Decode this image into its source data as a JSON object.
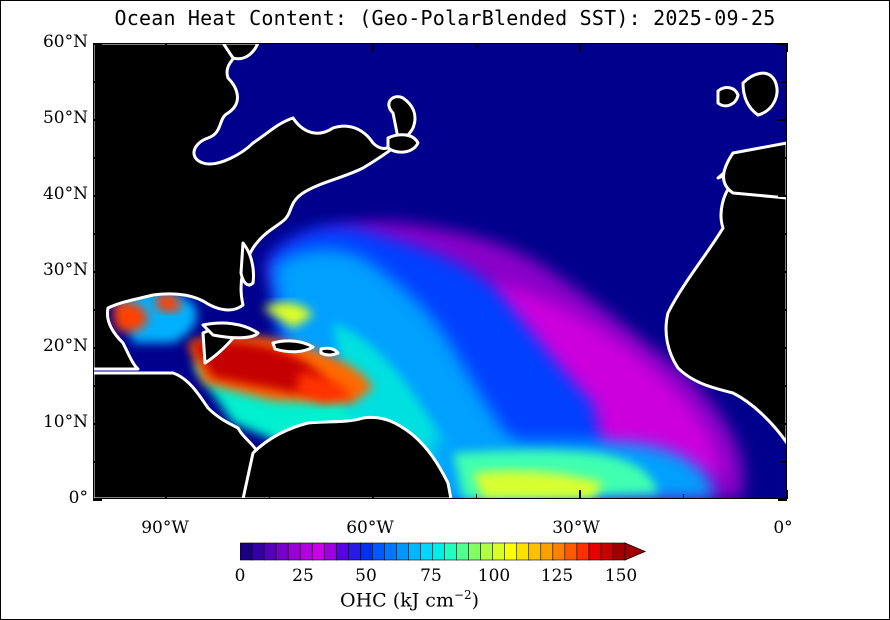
{
  "title": "Ocean Heat Content: (Geo-PolarBlended SST): 2025-09-25",
  "map": {
    "lat_labels": [
      "60°N",
      "50°N",
      "40°N",
      "30°N",
      "20°N",
      "10°N",
      "0°"
    ],
    "lon_labels": [
      "90°W",
      "60°W",
      "30°W",
      "0°"
    ],
    "land_color": "#000000",
    "coast_color": "#ffffff",
    "ocean_base_color": "#00008c"
  },
  "colorbar": {
    "tick_labels": [
      "0",
      "25",
      "50",
      "75",
      "100",
      "125",
      "150"
    ],
    "colors": [
      "#1a0080",
      "#3300a6",
      "#5500b8",
      "#7700c8",
      "#9900d6",
      "#b300e0",
      "#cc00e6",
      "#a000e0",
      "#5a00e6",
      "#2a1ae8",
      "#0030f0",
      "#0058ff",
      "#0078ff",
      "#0098ff",
      "#00b8ff",
      "#00d8ff",
      "#00f0e8",
      "#20ffc0",
      "#50ff90",
      "#80ff60",
      "#b0ff40",
      "#d8ff20",
      "#ffff00",
      "#ffe000",
      "#ffc000",
      "#ffa000",
      "#ff8000",
      "#ff5a00",
      "#ff3000",
      "#e80000",
      "#c80000",
      "#a00000"
    ],
    "unit_label": "OHC (kJ cm",
    "unit_exponent": "−2",
    "unit_close": ")"
  }
}
